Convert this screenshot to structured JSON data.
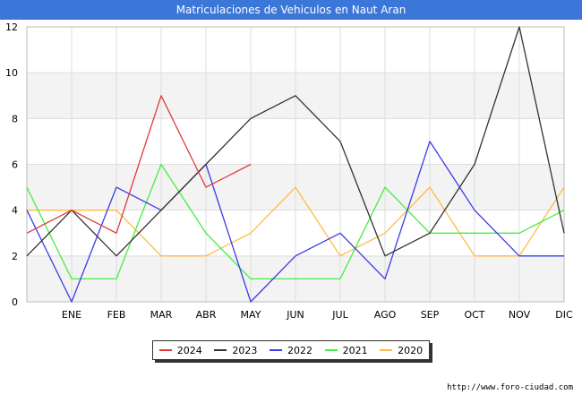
{
  "title": "Matriculaciones de Vehiculos en Naut Aran",
  "source": "http://www.foro-ciudad.com",
  "chart_data": {
    "type": "line",
    "title": "Matriculaciones de Vehiculos en Naut Aran",
    "categories": [
      "",
      "ENE",
      "FEB",
      "MAR",
      "ABR",
      "MAY",
      "JUN",
      "JUL",
      "AGO",
      "SEP",
      "OCT",
      "NOV",
      "DIC"
    ],
    "ylim": [
      0,
      12
    ],
    "yticks": [
      0,
      2,
      4,
      6,
      8,
      10,
      12
    ],
    "grid": true,
    "legend_position": "bottom",
    "series": [
      {
        "name": "2024",
        "color": "#e03a3a",
        "values": [
          3,
          4,
          3,
          9,
          5,
          6,
          null,
          null,
          null,
          null,
          null,
          null,
          null
        ]
      },
      {
        "name": "2023",
        "color": "#333333",
        "values": [
          2,
          4,
          2,
          4,
          6,
          8,
          9,
          7,
          2,
          3,
          6,
          12,
          3
        ]
      },
      {
        "name": "2022",
        "color": "#3b3be8",
        "values": [
          4,
          0,
          5,
          4,
          6,
          0,
          2,
          3,
          1,
          7,
          4,
          2,
          2
        ]
      },
      {
        "name": "2021",
        "color": "#44ee44",
        "values": [
          5,
          1,
          1,
          6,
          3,
          1,
          1,
          1,
          5,
          3,
          3,
          3,
          4
        ]
      },
      {
        "name": "2020",
        "color": "#ffbb44",
        "values": [
          4,
          4,
          4,
          2,
          2,
          3,
          5,
          2,
          3,
          5,
          2,
          2,
          5
        ]
      }
    ]
  }
}
